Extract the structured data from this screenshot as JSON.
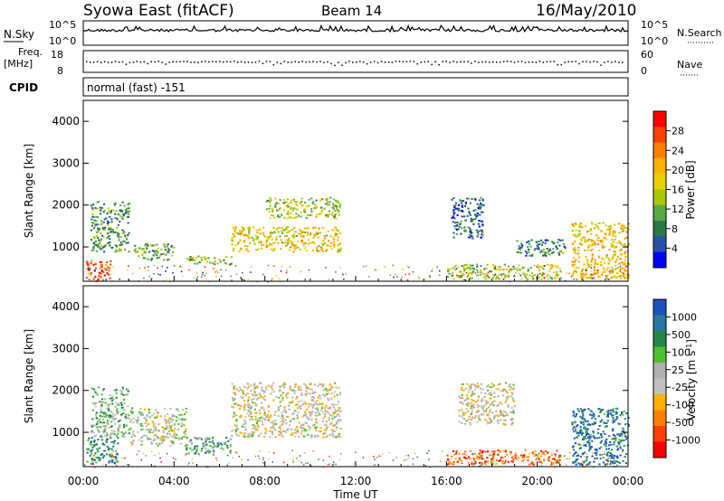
{
  "header": {
    "title": "Syowa East (fitACF)",
    "beam": "Beam 14",
    "date": "16/May/2010"
  },
  "top_panels": {
    "nsky_label": "N.Sky",
    "nsky_tick_top": "10^5",
    "nsky_tick_bottom": "10^0",
    "nsearch_label": "N.Search",
    "nsearch_tick_top": "10^5",
    "nsearch_tick_bottom": "10^0",
    "freq_label": "Freq.",
    "freq_unit": "[MHz]",
    "freq_tick_top": "18",
    "freq_tick_bottom": "8",
    "nave_label": "Nave",
    "nave_tick_top": "60",
    "nave_tick_bottom": "0",
    "cpid_label": "CPID",
    "cpid_value": "normal (fast) -151"
  },
  "chart_data": [
    {
      "type": "heatmap",
      "name": "power",
      "ylabel": "Slant Range [km]",
      "yticks": [
        "4000",
        "3000",
        "2000",
        "1000"
      ],
      "ylim": [
        180,
        4500
      ],
      "xlim": [
        0,
        24
      ],
      "colorbar_label": "Power [dB]",
      "colorbar_ticks": [
        "28",
        "24",
        "20",
        "16",
        "12",
        "8",
        "4"
      ],
      "colorbar_colors": [
        "#ff0000",
        "#ff4000",
        "#ff8000",
        "#ffb000",
        "#e8d000",
        "#a8c800",
        "#58a848",
        "#287848",
        "#2850a8",
        "#0000ff"
      ],
      "echo_regions": [
        {
          "t0": 0.1,
          "t1": 1.2,
          "r0": 200,
          "r1": 700,
          "level": 0.85
        },
        {
          "t0": 0.3,
          "t1": 2.0,
          "r0": 900,
          "r1": 2100,
          "level": 0.3
        },
        {
          "t0": 2.2,
          "t1": 4.0,
          "r0": 700,
          "r1": 1100,
          "level": 0.35
        },
        {
          "t0": 4.5,
          "t1": 6.5,
          "r0": 600,
          "r1": 800,
          "level": 0.4
        },
        {
          "t0": 6.5,
          "t1": 11.3,
          "r0": 900,
          "r1": 1500,
          "level": 0.55
        },
        {
          "t0": 8.0,
          "t1": 11.3,
          "r0": 1700,
          "r1": 2200,
          "level": 0.45
        },
        {
          "t0": 16.2,
          "t1": 17.6,
          "r0": 1200,
          "r1": 2200,
          "level": 0.2
        },
        {
          "t0": 16.0,
          "t1": 21.0,
          "r0": 250,
          "r1": 600,
          "level": 0.45
        },
        {
          "t0": 19.0,
          "t1": 21.2,
          "r0": 800,
          "r1": 1200,
          "level": 0.25
        },
        {
          "t0": 21.5,
          "t1": 24.0,
          "r0": 250,
          "r1": 1600,
          "level": 0.6
        }
      ]
    },
    {
      "type": "heatmap",
      "name": "velocity",
      "ylabel": "Slant Range [km]",
      "yticks": [
        "4000",
        "3000",
        "2000",
        "1000"
      ],
      "ylim": [
        180,
        4500
      ],
      "xlim": [
        0,
        24
      ],
      "colorbar_label": "Velocity [m s",
      "colorbar_label_sup": "-1",
      "colorbar_label_end": "]",
      "colorbar_ticks": [
        "1000",
        "500",
        "100",
        "25",
        "-25",
        "-100",
        "-500",
        "-1000"
      ],
      "colorbar_colors": [
        "#2050c0",
        "#2878a0",
        "#208848",
        "#50c030",
        "#b0b0b0",
        "#c0c0c0",
        "#ffb000",
        "#ff8000",
        "#ff4000",
        "#ff0000"
      ],
      "echo_regions": [
        {
          "t0": 0.1,
          "t1": 1.5,
          "r0": 250,
          "r1": 900,
          "level": 0.78
        },
        {
          "t0": 0.3,
          "t1": 2.0,
          "r0": 900,
          "r1": 2100,
          "level": 0.62
        },
        {
          "t0": 2.0,
          "t1": 4.5,
          "r0": 700,
          "r1": 1600,
          "level": 0.5
        },
        {
          "t0": 4.5,
          "t1": 6.5,
          "r0": 500,
          "r1": 900,
          "level": 0.7
        },
        {
          "t0": 6.5,
          "t1": 11.3,
          "r0": 900,
          "r1": 2200,
          "level": 0.47
        },
        {
          "t0": 16.0,
          "t1": 21.0,
          "r0": 250,
          "r1": 600,
          "level": 0.22
        },
        {
          "t0": 16.5,
          "t1": 19.0,
          "r0": 1200,
          "r1": 2200,
          "level": 0.47
        },
        {
          "t0": 21.5,
          "t1": 24.0,
          "r0": 250,
          "r1": 1600,
          "level": 0.85
        }
      ]
    }
  ],
  "x_axis": {
    "label": "Time UT",
    "ticks": [
      "00:00",
      "04:00",
      "08:00",
      "12:00",
      "16:00",
      "20:00",
      "00:00"
    ],
    "tick_hours": [
      0,
      4,
      8,
      12,
      16,
      20,
      24
    ]
  }
}
